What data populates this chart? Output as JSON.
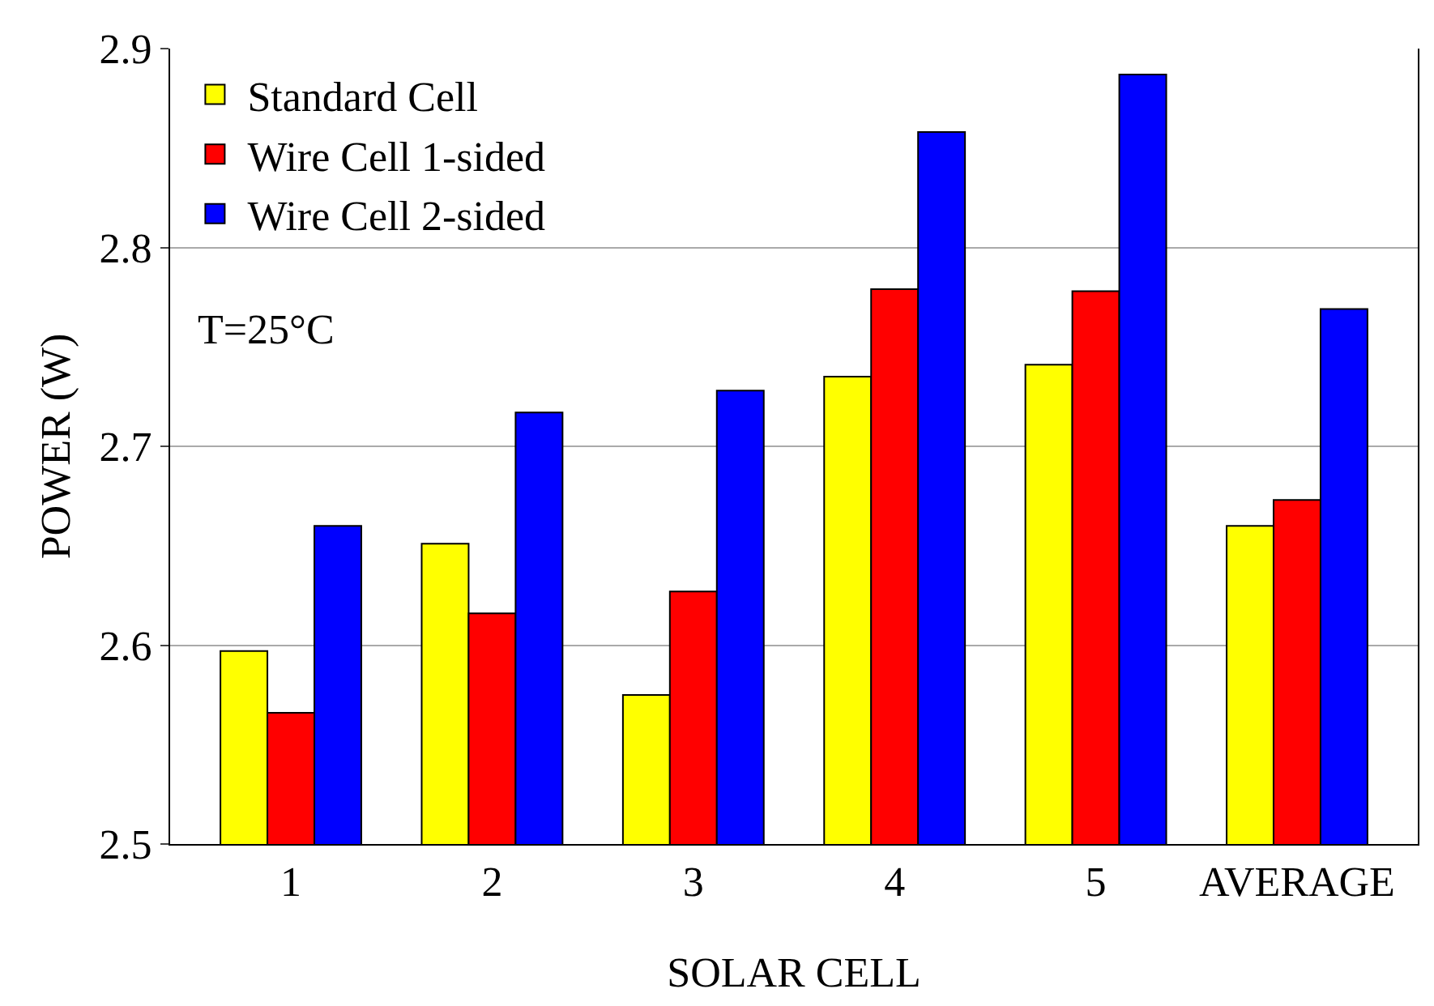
{
  "chart_data": {
    "type": "bar",
    "xlabel": "SOLAR CELL",
    "ylabel": "POWER (W)",
    "categories": [
      "1",
      "2",
      "3",
      "4",
      "5",
      "AVERAGE"
    ],
    "series": [
      {
        "name": "Standard Cell",
        "color": "#ffff00",
        "values": [
          2.597,
          2.651,
          2.575,
          2.735,
          2.741,
          2.66
        ]
      },
      {
        "name": "Wire Cell 1-sided",
        "color": "#ff0000",
        "values": [
          2.566,
          2.616,
          2.627,
          2.779,
          2.778,
          2.673
        ]
      },
      {
        "name": "Wire Cell 2-sided",
        "color": "#0000ff",
        "values": [
          2.66,
          2.717,
          2.728,
          2.858,
          2.887,
          2.769
        ]
      }
    ],
    "ylim": [
      2.5,
      2.9
    ],
    "yticks": [
      2.5,
      2.6,
      2.7,
      2.8,
      2.9
    ],
    "grid": "y",
    "legend": "top left",
    "annotations": [
      "T=25°C"
    ]
  }
}
